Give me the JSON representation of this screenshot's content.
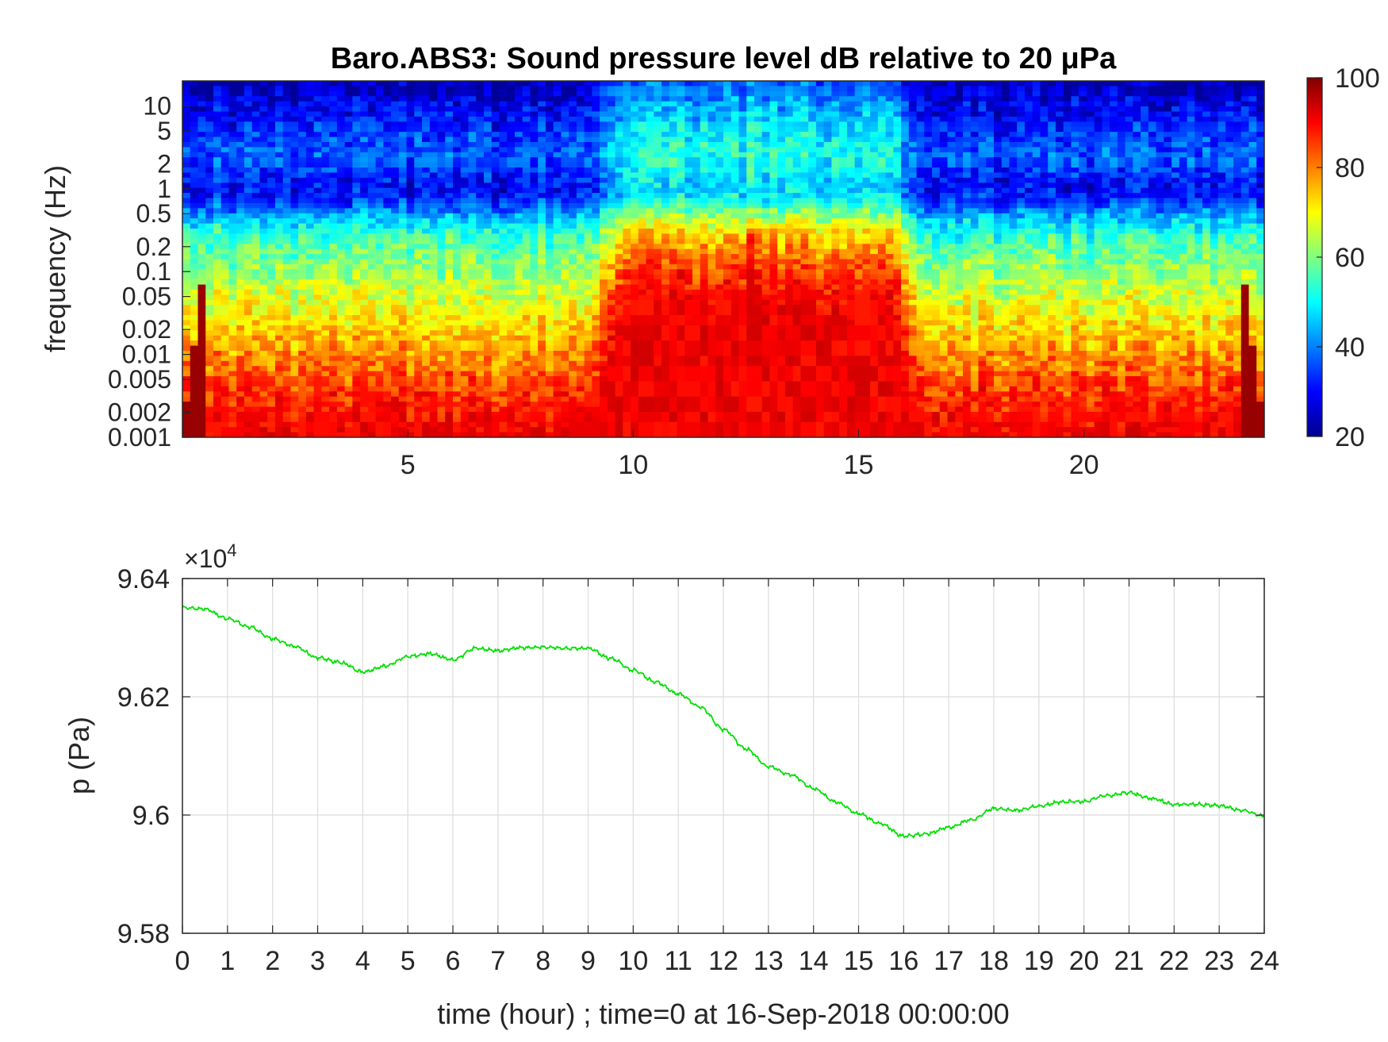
{
  "chart_data": [
    {
      "type": "heatmap",
      "title": "Baro.ABS3: Sound pressure level dB relative to 20 μPa",
      "ylabel": "frequency (Hz)",
      "xlabel": "",
      "x_ticks": [
        5,
        10,
        15,
        20
      ],
      "xlim": [
        0,
        24
      ],
      "y_scale": "log",
      "ylim": [
        0.001,
        20
      ],
      "y_ticks": [
        "0.001",
        "0.002",
        "0.005",
        "0.01",
        "0.02",
        "0.05",
        "0.1",
        "0.2",
        "0.5",
        "1",
        "2",
        "5",
        "10"
      ],
      "y_tick_values": [
        0.001,
        0.002,
        0.005,
        0.01,
        0.02,
        0.05,
        0.1,
        0.2,
        0.5,
        1,
        2,
        5,
        10
      ],
      "colormap": "jet",
      "colorbar": {
        "min": 20,
        "max": 100,
        "ticks": [
          "20",
          "40",
          "60",
          "80",
          "100"
        ],
        "tick_values": [
          20,
          40,
          60,
          80,
          100
        ]
      },
      "features": {
        "quiet_band_hz": [
          0.3,
          3
        ],
        "active_hours": [
          9,
          16.5
        ],
        "peak_hour": 12.6
      }
    },
    {
      "type": "line",
      "title": "",
      "xlabel": "time (hour) ; time=0 at 16-Sep-2018 00:00:00",
      "ylabel": "p (Pa)",
      "y_multiplier": "×10",
      "y_multiplier_exp": "4",
      "xlim": [
        0,
        24
      ],
      "ylim": [
        9.58,
        9.64
      ],
      "x_ticks": [
        "0",
        "1",
        "2",
        "3",
        "4",
        "5",
        "6",
        "7",
        "8",
        "9",
        "10",
        "11",
        "12",
        "13",
        "14",
        "15",
        "16",
        "17",
        "18",
        "19",
        "20",
        "21",
        "22",
        "23",
        "24"
      ],
      "y_ticks": [
        "9.58",
        "9.6",
        "9.62",
        "9.64"
      ],
      "y_tick_values": [
        9.58,
        9.6,
        9.62,
        9.64
      ],
      "grid": true,
      "color": "#00e000",
      "series": [
        {
          "x": [
            0,
            0.5,
            1,
            1.5,
            2,
            2.5,
            3,
            3.5,
            4,
            4.5,
            5,
            5.5,
            6,
            6.5,
            7,
            7.5,
            8,
            8.5,
            9,
            9.5,
            10,
            10.5,
            11,
            11.5,
            12,
            12.5,
            13,
            13.5,
            14,
            14.5,
            15,
            15.5,
            16,
            16.5,
            17,
            17.5,
            18,
            18.5,
            19,
            19.5,
            20,
            20.5,
            21,
            21.5,
            22,
            22.5,
            23,
            23.5,
            24
          ],
          "y": [
            9.6351,
            9.6348,
            9.6332,
            9.6318,
            9.6298,
            9.6285,
            9.6266,
            9.6258,
            9.6242,
            9.6252,
            9.6268,
            9.6273,
            9.6262,
            9.6282,
            9.6278,
            9.6283,
            9.6284,
            9.6282,
            9.6282,
            9.6265,
            9.6245,
            9.6225,
            9.6205,
            9.6182,
            9.6145,
            9.6112,
            9.6082,
            9.6068,
            9.6045,
            9.6022,
            9.6002,
            9.5985,
            9.5964,
            9.5968,
            9.5979,
            9.5992,
            9.6011,
            9.6008,
            9.6015,
            9.6022,
            9.6023,
            9.6033,
            9.6038,
            9.6028,
            9.6018,
            9.6018,
            9.6016,
            9.6008,
            9.5998
          ]
        }
      ]
    }
  ]
}
